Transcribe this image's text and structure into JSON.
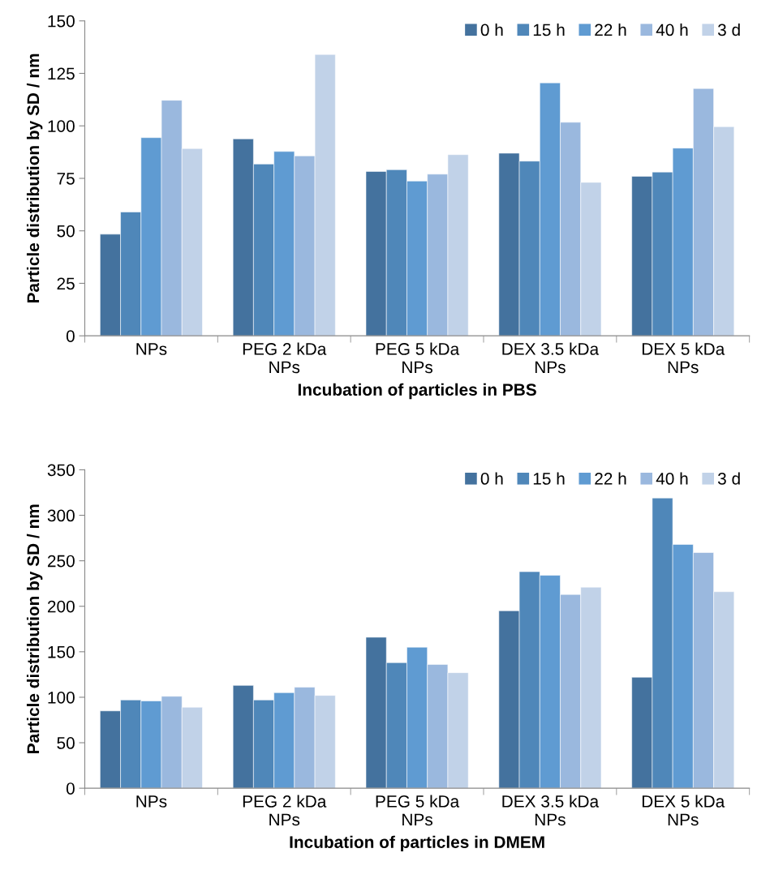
{
  "chart_data": [
    {
      "type": "bar",
      "xlabel": "Incubation of particles in PBS",
      "ylabel": "Particle distribution by SD / nm",
      "categories": [
        "NPs",
        "PEG 2 kDa\nNPs",
        "PEG 5 kDa\nNPs",
        "DEX 3.5 kDa\nNPs",
        "DEX 5 kDa\nNPs"
      ],
      "series": [
        {
          "name": "0 h",
          "color": "#44729e",
          "values": [
            48.4,
            93.8,
            78.3,
            87,
            76
          ]
        },
        {
          "name": "15 h",
          "color": "#4f87b9",
          "values": [
            59,
            81.8,
            79.1,
            83.2,
            78
          ]
        },
        {
          "name": "22 h",
          "color": "#5f9bd2",
          "values": [
            94.4,
            87.8,
            73.7,
            120.5,
            89.4
          ]
        },
        {
          "name": "40 h",
          "color": "#9ab8de",
          "values": [
            112.2,
            85.7,
            77,
            101.7,
            117.8
          ]
        },
        {
          "name": "3 d",
          "color": "#c1d2e8",
          "values": [
            89.2,
            134,
            86.3,
            73.1,
            99.6
          ]
        }
      ],
      "ylim": [
        0,
        150
      ],
      "yticks": [
        0,
        25,
        50,
        75,
        100,
        125,
        150
      ],
      "legend": "top right",
      "grid": false
    },
    {
      "type": "bar",
      "xlabel": "Incubation of particles in DMEM",
      "ylabel": "Particle distribution by SD / nm",
      "categories": [
        "NPs",
        "PEG 2 kDa\nNPs",
        "PEG 5 kDa\nNPs",
        "DEX 3.5 kDa\nNPs",
        "DEX 5 kDa\nNPs"
      ],
      "series": [
        {
          "name": "0 h",
          "color": "#44729e",
          "values": [
            85,
            113,
            166,
            195,
            122
          ]
        },
        {
          "name": "15 h",
          "color": "#4f87b9",
          "values": [
            97,
            97,
            138,
            238,
            319
          ]
        },
        {
          "name": "22 h",
          "color": "#5f9bd2",
          "values": [
            96,
            105,
            155,
            234,
            268
          ]
        },
        {
          "name": "40 h",
          "color": "#9ab8de",
          "values": [
            101,
            111,
            136,
            213,
            259
          ]
        },
        {
          "name": "3 d",
          "color": "#c1d2e8",
          "values": [
            89,
            102,
            127,
            221,
            216
          ]
        }
      ],
      "ylim": [
        0,
        350
      ],
      "yticks": [
        0,
        50,
        100,
        150,
        200,
        250,
        300,
        350
      ],
      "legend": "top right",
      "grid": false
    }
  ]
}
